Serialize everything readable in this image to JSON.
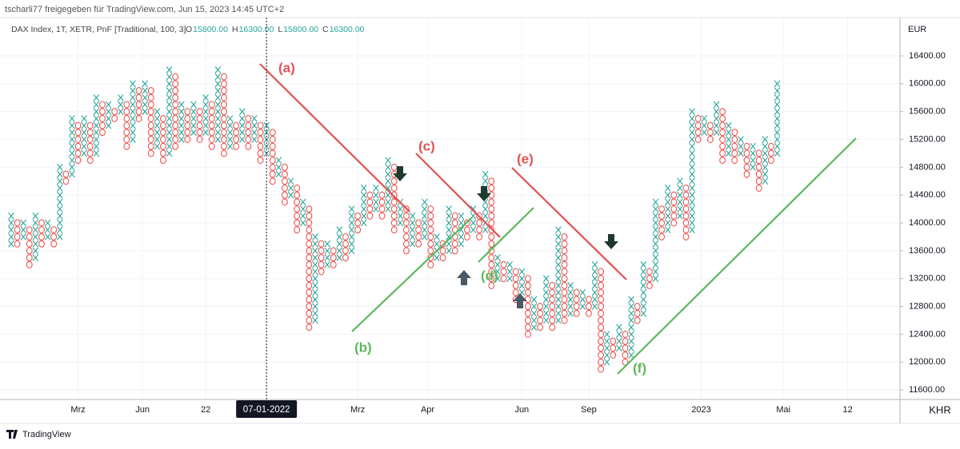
{
  "header": "tscharli77 freigegeben für TradingView.com, Jun 15, 2023 14:45 UTC+2",
  "footer": "TradingView",
  "chart_data": {
    "type": "pnf",
    "title": "DAX Index, 1T, XETR, PnF [Traditional, 100, 3]",
    "ohlc": [
      {
        "key": "O",
        "value": "15800.00"
      },
      {
        "key": "H",
        "value": "16300.00"
      },
      {
        "key": "L",
        "value": "15800.00"
      },
      {
        "key": "C",
        "value": "16300.00"
      }
    ],
    "currency": "EUR",
    "timezone_button": "KHR",
    "box_size": 100,
    "colors": {
      "X": "#26a69a",
      "O": "#ef5350"
    },
    "grid": true,
    "kind": [
      "X",
      "O",
      "X",
      "O",
      "X",
      "O",
      "X",
      "O",
      "X",
      "O",
      "X",
      "O",
      "X",
      "O",
      "X",
      "O",
      "X",
      "O",
      "X",
      "O",
      "X",
      "O",
      "X",
      "O",
      "X",
      "O",
      "X",
      "O",
      "X",
      "O",
      "X",
      "O",
      "X",
      "O",
      "X",
      "O",
      "X",
      "O",
      "X",
      "O",
      "X",
      "O",
      "X",
      "O",
      "X",
      "O",
      "X",
      "O",
      "X",
      "O",
      "X",
      "O",
      "X",
      "O",
      "X",
      "O",
      "X",
      "O",
      "X",
      "O",
      "X",
      "O",
      "X",
      "O",
      "X",
      "O",
      "X",
      "O",
      "X",
      "O",
      "X",
      "O",
      "X",
      "O",
      "X",
      "O",
      "X",
      "O",
      "X",
      "O",
      "X",
      "O",
      "X",
      "O",
      "X",
      "O",
      "X",
      "O",
      "X",
      "O",
      "X",
      "O",
      "X",
      "O",
      "X",
      "O",
      "X",
      "O",
      "X",
      "O",
      "X",
      "O",
      "X",
      "O",
      "X",
      "O",
      "X",
      "O",
      "X",
      "O",
      "X",
      "O",
      "X",
      "O",
      "X",
      "O",
      "X",
      "O",
      "X",
      "O",
      "X",
      "O",
      "X",
      "O",
      "X",
      "O",
      "X"
    ],
    "low": [
      13700,
      13700,
      13800,
      13400,
      13500,
      13700,
      13800,
      13700,
      13800,
      14600,
      14700,
      14900,
      15000,
      14900,
      15000,
      15300,
      15400,
      15500,
      15600,
      15100,
      15200,
      15500,
      15600,
      15000,
      15100,
      14900,
      15000,
      15100,
      15200,
      15200,
      15300,
      15200,
      15300,
      15100,
      15200,
      15000,
      15100,
      15100,
      15200,
      15100,
      15200,
      14900,
      15000,
      14600,
      14700,
      14300,
      14400,
      13900,
      14000,
      12500,
      12600,
      13300,
      13400,
      13400,
      13500,
      13500,
      13600,
      13900,
      14000,
      14100,
      14200,
      14100,
      14200,
      13900,
      14000,
      13600,
      13700,
      13700,
      13800,
      13400,
      13500,
      13500,
      13600,
      13600,
      13700,
      13800,
      13900,
      13800,
      13900,
      13100,
      13200,
      13200,
      13200,
      12900,
      13000,
      12400,
      12500,
      12500,
      12600,
      12500,
      12600,
      12600,
      12700,
      12700,
      12800,
      12700,
      12800,
      11900,
      12000,
      12100,
      12200,
      12000,
      12100,
      12600,
      12700,
      13100,
      13200,
      13800,
      13900,
      14000,
      14100,
      13800,
      13900,
      15200,
      15300,
      15200,
      15300,
      14900,
      15000,
      14900,
      15000,
      14700,
      14800,
      14500,
      14600,
      14900,
      15000,
      15700,
      15800,
      15700,
      15800
    ],
    "high": [
      14100,
      14000,
      14000,
      13900,
      14100,
      14000,
      14000,
      13900,
      14800,
      14700,
      15500,
      15400,
      15500,
      15400,
      15800,
      15700,
      15700,
      15600,
      15800,
      15700,
      16000,
      15900,
      16000,
      15900,
      15600,
      15500,
      16200,
      16100,
      15700,
      15600,
      15700,
      15600,
      15800,
      15700,
      16200,
      16100,
      15500,
      15400,
      15600,
      15500,
      15500,
      15400,
      15400,
      15300,
      14900,
      14800,
      14600,
      14500,
      14300,
      14200,
      13800,
      13700,
      13700,
      13600,
      13900,
      13800,
      14200,
      14100,
      14500,
      14400,
      14500,
      14400,
      14900,
      14800,
      14300,
      14200,
      14100,
      14000,
      14300,
      14200,
      13800,
      13700,
      14200,
      14100,
      14100,
      14000,
      14200,
      14100,
      14700,
      14600,
      13500,
      13400,
      13400,
      13300,
      13300,
      13200,
      12900,
      12800,
      13200,
      13100,
      13900,
      13800,
      13100,
      13000,
      13000,
      12900,
      13400,
      13300,
      12400,
      12300,
      12500,
      12400,
      12900,
      12800,
      13400,
      13300,
      14300,
      14200,
      14500,
      14400,
      14600,
      14500,
      15600,
      15500,
      15500,
      15400,
      15700,
      15600,
      15400,
      15300,
      15200,
      15100,
      15100,
      15000,
      15200,
      15100,
      16000,
      15900,
      16200,
      16100,
      16300
    ],
    "xlim": [
      -1.84,
      146.2
    ],
    "xticks": [
      {
        "value": 11,
        "label": "Mrz"
      },
      {
        "value": 21.6,
        "label": "Jun"
      },
      {
        "value": 32,
        "label": "22"
      },
      {
        "value": 42,
        "label": "07-01-2022",
        "highlight": true
      },
      {
        "value": 57,
        "label": "Mrz"
      },
      {
        "value": 68.5,
        "label": "Apr"
      },
      {
        "value": 84,
        "label": "Jun"
      },
      {
        "value": 95,
        "label": "Sep"
      },
      {
        "value": 113.5,
        "label": "2023"
      },
      {
        "value": 127,
        "label": "Mai"
      },
      {
        "value": 137.6,
        "label": "12"
      }
    ],
    "ylim": [
      11463,
      16951
    ],
    "yticks": [
      {
        "value": 11600,
        "label": "11600.00"
      },
      {
        "value": 12000,
        "label": "12000.00"
      },
      {
        "value": 12400,
        "label": "12400.00"
      },
      {
        "value": 12800,
        "label": "12800.00"
      },
      {
        "value": 13200,
        "label": "13200.00"
      },
      {
        "value": 13600,
        "label": "13600.00"
      },
      {
        "value": 14000,
        "label": "14000.00"
      },
      {
        "value": 14400,
        "label": "14400.00"
      },
      {
        "value": 14800,
        "label": "14800.00"
      },
      {
        "value": 15200,
        "label": "15200.00"
      },
      {
        "value": 15600,
        "label": "15600.00"
      },
      {
        "value": 16000,
        "label": "16000.00"
      },
      {
        "value": 16400,
        "label": "16400.00"
      }
    ],
    "annotations": [
      "(a)",
      "(b)",
      "(c)",
      "(d)",
      "(e)",
      "(f)"
    ]
  }
}
